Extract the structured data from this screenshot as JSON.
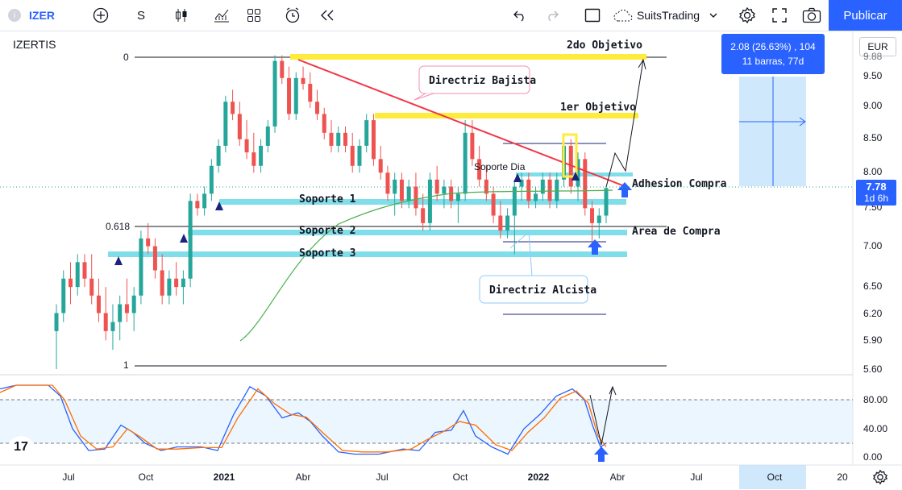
{
  "toolbar": {
    "symbol": "IZER",
    "interval": "S",
    "user": "SuitsTrading",
    "publish": "Publicar",
    "icons": [
      "add-icon",
      "candles-icon",
      "indicators-icon",
      "templates-icon",
      "alert-icon",
      "replay-icon",
      "undo-icon",
      "redo-icon",
      "fullscreen-icon",
      "settings-icon",
      "expand-icon",
      "camera-icon",
      "cloud-icon"
    ]
  },
  "header": {
    "title": "IZERTIS",
    "currency": "EUR"
  },
  "measure_box": {
    "line1": "2.08 (26.63%) , 104",
    "line2": "11 barras, 77d"
  },
  "current_price": {
    "value": "7.78",
    "countdown": "1d 6h"
  },
  "chart_data": {
    "type": "candlestick",
    "price_axis": [
      "9.88",
      "9.50",
      "9.00",
      "8.50",
      "8.00",
      "7.50",
      "7.00",
      "6.50",
      "6.20",
      "5.90",
      "5.60"
    ],
    "time_axis": [
      "Jul",
      "Oct",
      "2021",
      "Abr",
      "Jul",
      "Oct",
      "2022",
      "Abr",
      "Jul",
      "Oct",
      "20"
    ],
    "osc_axis": [
      "80.00",
      "40.00",
      "0.00"
    ],
    "fib_labels": [
      "0",
      "0.618",
      "1"
    ],
    "annotations": {
      "objetivo2": "2do Objetivo",
      "objetivo1": "1er Objetivo",
      "directriz_bajista": "Directriz Bajista",
      "directriz_alcista": "Directriz Alcista",
      "soporte_dia": "Soporte Dia",
      "soporte1": "Soporte 1",
      "soporte2": "Soporte 2",
      "soporte3": "Soporte 3",
      "adhesion": "Adhesion Compra",
      "area_compra": "Area de Compra"
    },
    "colors": {
      "up": "#26a69a",
      "down": "#ef5350",
      "support": "#80deea",
      "objective": "#ffeb3b",
      "trend": "#f23645",
      "ma": "#4caf50",
      "stoch_k": "#2962ff",
      "stoch_d": "#ff6d00"
    },
    "candles": [
      [
        6.0,
        6.3,
        5.6,
        6.2
      ],
      [
        6.2,
        6.7,
        6.1,
        6.6
      ],
      [
        6.6,
        6.8,
        6.3,
        6.5
      ],
      [
        6.5,
        6.9,
        6.4,
        6.8
      ],
      [
        6.8,
        6.9,
        6.5,
        6.6
      ],
      [
        6.6,
        6.9,
        6.3,
        6.4
      ],
      [
        6.4,
        6.6,
        6.1,
        6.2
      ],
      [
        6.2,
        6.5,
        5.9,
        6.0
      ],
      [
        6.0,
        6.3,
        5.8,
        6.1
      ],
      [
        6.1,
        6.4,
        5.9,
        6.3
      ],
      [
        6.3,
        6.6,
        6.1,
        6.2
      ],
      [
        6.2,
        6.5,
        6.0,
        6.4
      ],
      [
        6.4,
        7.2,
        6.3,
        7.1
      ],
      [
        7.1,
        7.3,
        6.9,
        7.0
      ],
      [
        7.0,
        7.1,
        6.6,
        6.7
      ],
      [
        6.7,
        6.9,
        6.3,
        6.4
      ],
      [
        6.4,
        6.7,
        6.3,
        6.6
      ],
      [
        6.6,
        6.8,
        6.4,
        6.5
      ],
      [
        6.5,
        6.7,
        6.3,
        6.6
      ],
      [
        6.6,
        7.7,
        6.5,
        7.6
      ],
      [
        7.6,
        7.7,
        7.4,
        7.5
      ],
      [
        7.5,
        7.8,
        7.4,
        7.7
      ],
      [
        7.7,
        8.2,
        7.6,
        8.1
      ],
      [
        8.1,
        8.5,
        8.0,
        8.4
      ],
      [
        8.4,
        9.2,
        8.3,
        9.1
      ],
      [
        9.1,
        9.3,
        8.8,
        8.9
      ],
      [
        8.9,
        9.1,
        8.4,
        8.5
      ],
      [
        8.5,
        8.8,
        8.2,
        8.3
      ],
      [
        8.3,
        8.6,
        8.0,
        8.1
      ],
      [
        8.1,
        8.5,
        8.0,
        8.4
      ],
      [
        8.4,
        8.8,
        8.3,
        8.7
      ],
      [
        8.7,
        9.9,
        8.6,
        9.8
      ],
      [
        9.8,
        9.9,
        9.4,
        9.5
      ],
      [
        9.5,
        9.7,
        8.8,
        8.9
      ],
      [
        8.9,
        9.6,
        8.8,
        9.5
      ],
      [
        9.5,
        9.7,
        9.3,
        9.4
      ],
      [
        9.4,
        9.6,
        9.0,
        9.1
      ],
      [
        9.1,
        9.3,
        8.8,
        8.9
      ],
      [
        8.9,
        9.0,
        8.5,
        8.6
      ],
      [
        8.6,
        8.8,
        8.3,
        8.4
      ],
      [
        8.4,
        8.7,
        8.3,
        8.6
      ],
      [
        8.6,
        8.7,
        8.3,
        8.4
      ],
      [
        8.4,
        8.6,
        8.0,
        8.1
      ],
      [
        8.1,
        8.5,
        8.0,
        8.4
      ],
      [
        8.4,
        8.9,
        8.3,
        8.8
      ],
      [
        8.8,
        8.9,
        8.1,
        8.2
      ],
      [
        8.2,
        8.4,
        7.9,
        8.0
      ],
      [
        8.0,
        8.1,
        7.6,
        7.7
      ],
      [
        7.7,
        8.0,
        7.4,
        7.9
      ],
      [
        7.9,
        8.0,
        7.5,
        7.6
      ],
      [
        7.6,
        7.9,
        7.5,
        7.8
      ],
      [
        7.8,
        8.0,
        7.4,
        7.5
      ],
      [
        7.5,
        7.7,
        7.2,
        7.3
      ],
      [
        7.3,
        8.0,
        7.2,
        7.9
      ],
      [
        7.9,
        8.1,
        7.6,
        7.7
      ],
      [
        7.7,
        7.9,
        7.5,
        7.8
      ],
      [
        7.8,
        7.9,
        7.5,
        7.6
      ],
      [
        7.6,
        7.8,
        7.3,
        7.7
      ],
      [
        7.7,
        8.8,
        7.6,
        8.6
      ],
      [
        8.6,
        8.8,
        8.1,
        8.2
      ],
      [
        8.2,
        8.4,
        7.8,
        7.9
      ],
      [
        7.9,
        8.1,
        7.6,
        7.7
      ],
      [
        7.7,
        7.8,
        7.3,
        7.4
      ],
      [
        7.4,
        7.6,
        7.1,
        7.2
      ],
      [
        7.2,
        7.5,
        7.1,
        7.4
      ],
      [
        7.4,
        7.9,
        6.9,
        7.8
      ],
      [
        7.8,
        8.0,
        7.6,
        7.9
      ],
      [
        7.9,
        8.0,
        7.5,
        7.6
      ],
      [
        7.6,
        7.8,
        7.5,
        7.7
      ],
      [
        7.7,
        8.0,
        7.6,
        7.9
      ],
      [
        7.9,
        8.0,
        7.5,
        7.6
      ],
      [
        7.6,
        8.0,
        7.5,
        7.9
      ],
      [
        7.9,
        8.5,
        7.8,
        8.4
      ],
      [
        8.4,
        8.5,
        7.7,
        7.8
      ],
      [
        7.8,
        8.3,
        7.6,
        8.2
      ],
      [
        8.2,
        8.3,
        7.4,
        7.5
      ],
      [
        7.5,
        7.6,
        7.0,
        7.3
      ],
      [
        7.3,
        7.5,
        7.1,
        7.4
      ],
      [
        7.4,
        7.8,
        7.3,
        7.78
      ]
    ]
  }
}
